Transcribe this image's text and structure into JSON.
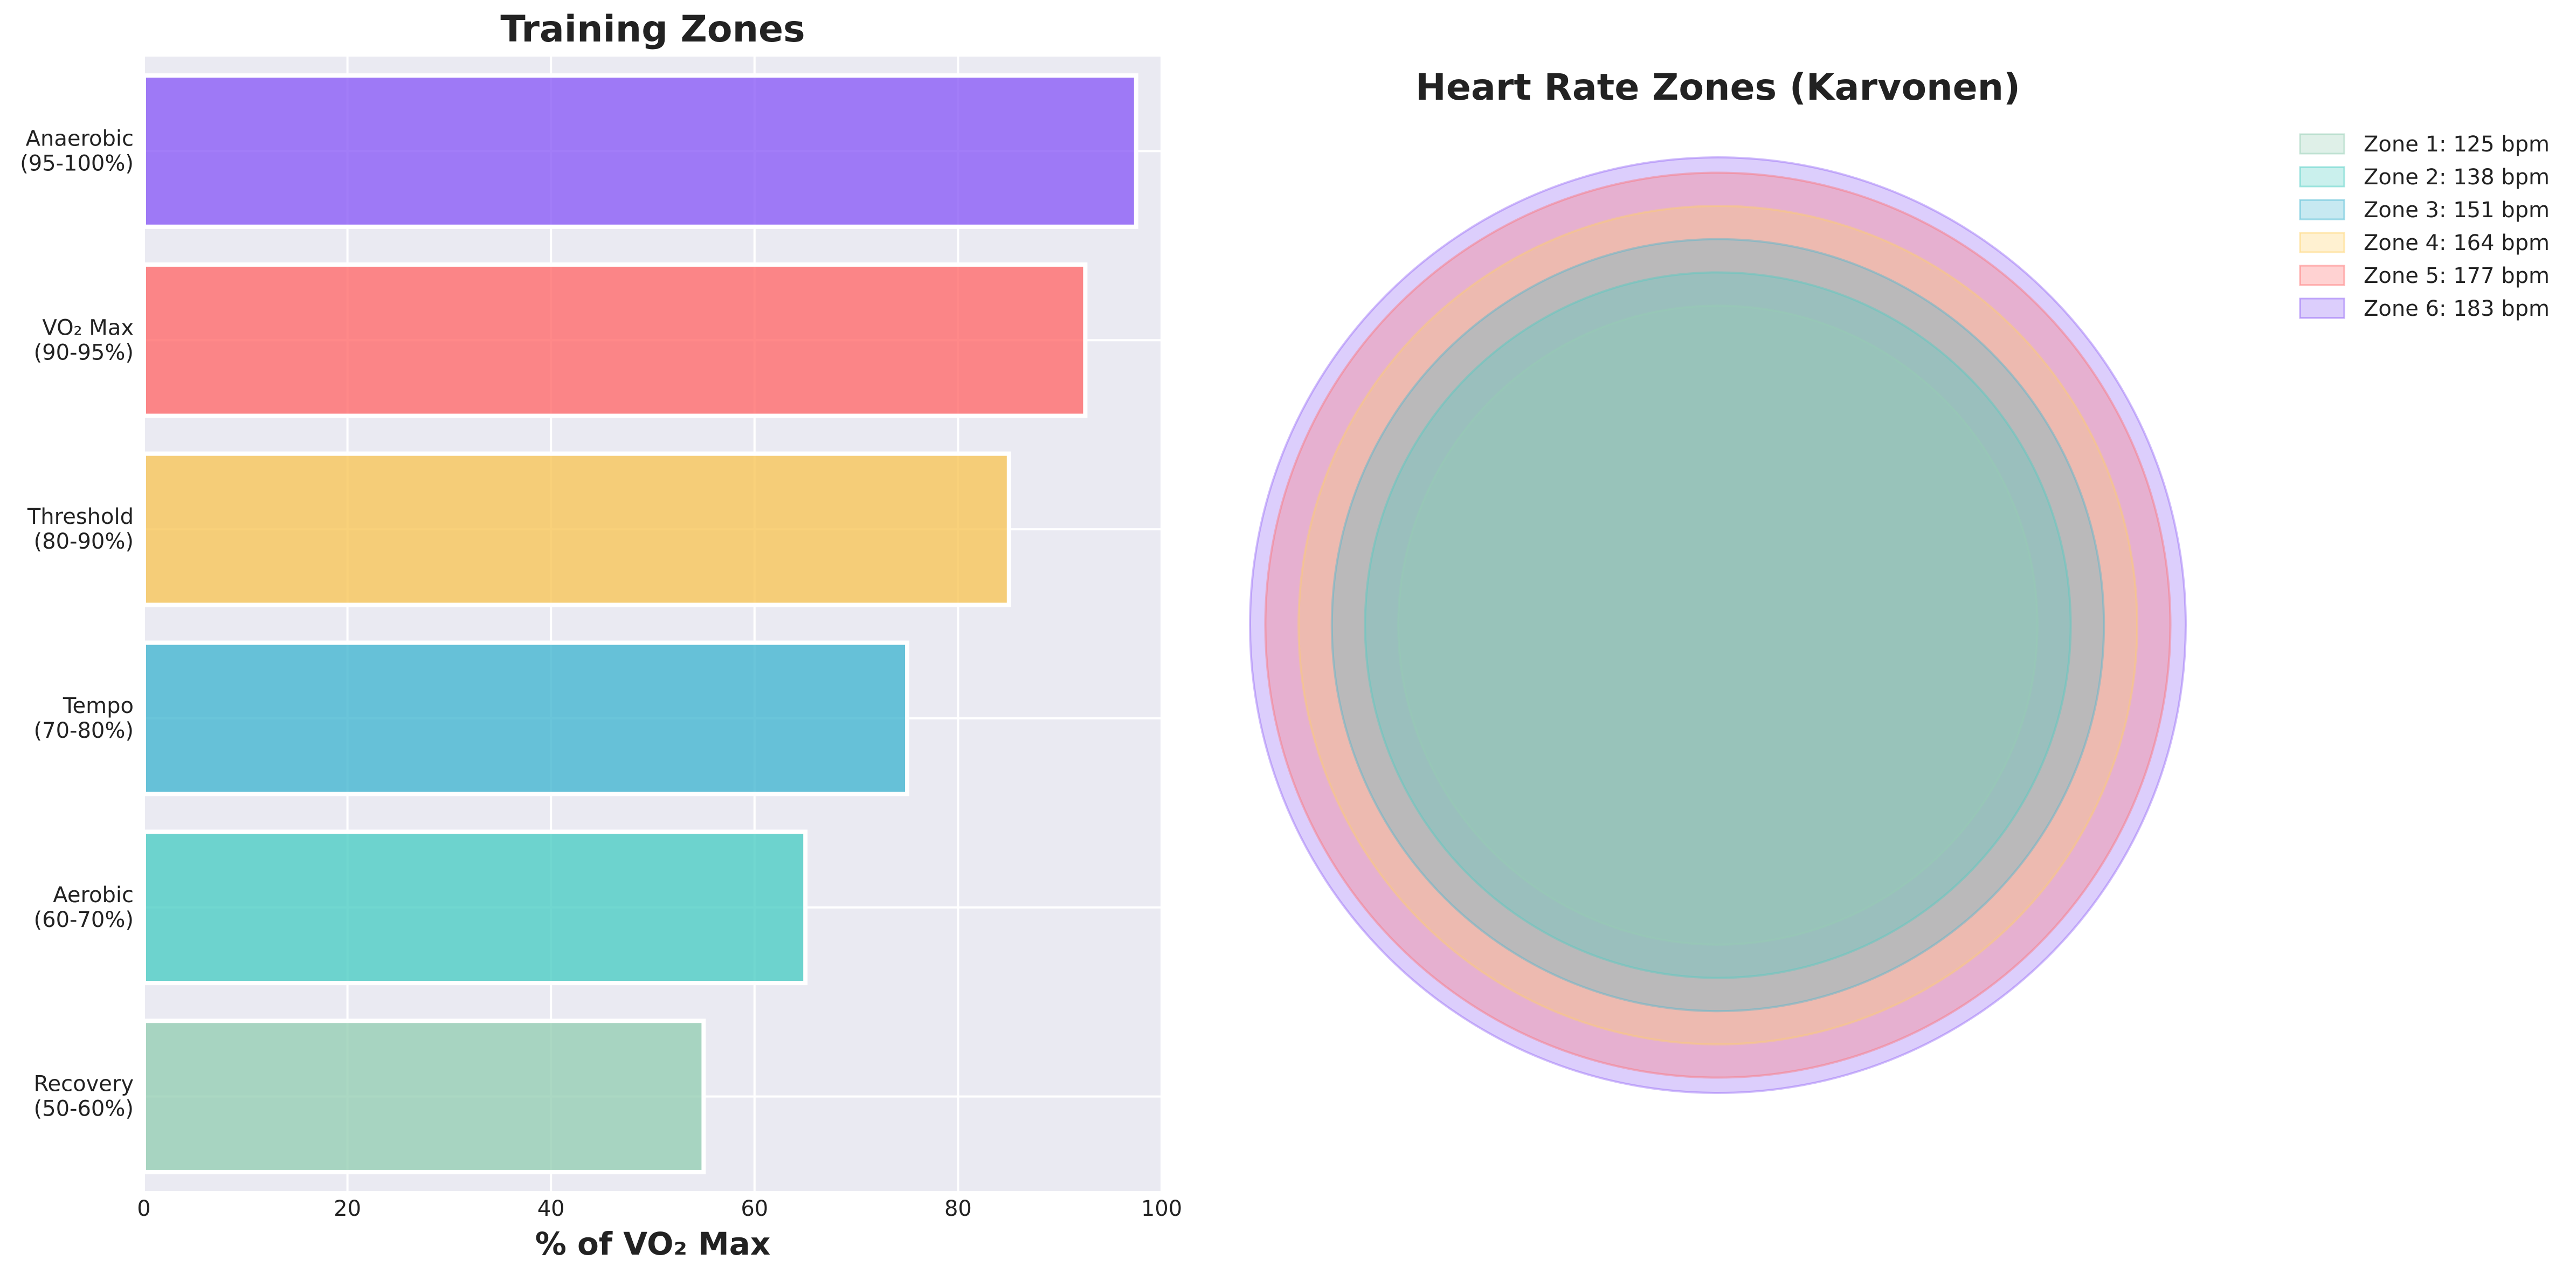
{
  "chart_data": [
    {
      "type": "bar",
      "orientation": "horizontal",
      "title": "Training Zones",
      "xlabel": "% of VO₂ Max",
      "ylabel": "",
      "xlim": [
        0,
        100
      ],
      "xticks": [
        "0",
        "20",
        "40",
        "60",
        "80",
        "100"
      ],
      "grid": true,
      "categories": [
        [
          "Recovery",
          "(50-60%)"
        ],
        [
          "Aerobic",
          "(60-70%)"
        ],
        [
          "Tempo",
          "(70-80%)"
        ],
        [
          "Threshold",
          "(80-90%)"
        ],
        [
          "VO₂ Max",
          "(90-95%)"
        ],
        [
          "Anaerobic",
          "(95-100%)"
        ]
      ],
      "values": [
        55,
        65,
        75,
        85,
        92.5,
        97.5
      ],
      "colors": [
        "#96CEB4",
        "#4ECDC4",
        "#45B7D1",
        "#F7C559",
        "#FF6B6B",
        "#8B5CF6"
      ]
    },
    {
      "type": "concentric-circles",
      "title": "Heart Rate Zones (Karvonen)",
      "legend_position": "top-right, outside",
      "series": [
        {
          "name": "Zone 1: 125 bpm",
          "value": 125,
          "color": "#96CEB4"
        },
        {
          "name": "Zone 2: 138 bpm",
          "value": 138,
          "color": "#4ECDC4"
        },
        {
          "name": "Zone 3: 151 bpm",
          "value": 151,
          "color": "#45B7D1"
        },
        {
          "name": "Zone 4: 164 bpm",
          "value": 164,
          "color": "#FFD166"
        },
        {
          "name": "Zone 5: 177 bpm",
          "value": 177,
          "color": "#FF6B6B"
        },
        {
          "name": "Zone 6: 183 bpm",
          "value": 183,
          "color": "#8B5CF6"
        }
      ]
    }
  ]
}
